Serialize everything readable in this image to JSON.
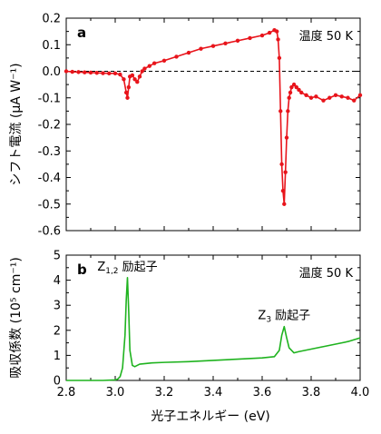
{
  "chart_data": [
    {
      "panel_label": "a",
      "type": "line",
      "annotation": "温度 50 K",
      "ylabel": "シフト電流 (μA W⁻¹)",
      "xlim": [
        2.8,
        4.0
      ],
      "ylim": [
        -0.6,
        0.2
      ],
      "yticks": [
        -0.6,
        -0.5,
        -0.4,
        -0.3,
        -0.2,
        -0.1,
        0.0,
        0.1,
        0.2
      ],
      "ytick_labels": [
        "-0.6",
        "-0.5",
        "-0.4",
        "-0.3",
        "-0.2",
        "-0.1",
        "0.0",
        "0.1",
        "0.2"
      ],
      "zero_line": "dashed",
      "color": "#e8141b",
      "markers": true,
      "series": [
        {
          "x": [
            2.8,
            2.825,
            2.85,
            2.875,
            2.9,
            2.925,
            2.95,
            2.975,
            3.0,
            3.02,
            3.035,
            3.045,
            3.05,
            3.055,
            3.06,
            3.07,
            3.08,
            3.09,
            3.1,
            3.11,
            3.12,
            3.14,
            3.16,
            3.2,
            3.25,
            3.3,
            3.35,
            3.4,
            3.45,
            3.5,
            3.55,
            3.6,
            3.63,
            3.65,
            3.66,
            3.665,
            3.67,
            3.675,
            3.68,
            3.685,
            3.69,
            3.695,
            3.7,
            3.705,
            3.71,
            3.715,
            3.72,
            3.73,
            3.74,
            3.75,
            3.76,
            3.78,
            3.8,
            3.82,
            3.85,
            3.875,
            3.9,
            3.925,
            3.95,
            3.975,
            4.0
          ],
          "y": [
            0.0,
            -0.002,
            -0.003,
            -0.004,
            -0.005,
            -0.006,
            -0.007,
            -0.008,
            -0.008,
            -0.012,
            -0.03,
            -0.08,
            -0.1,
            -0.06,
            -0.02,
            -0.015,
            -0.03,
            -0.04,
            -0.02,
            0.0,
            0.01,
            0.02,
            0.03,
            0.04,
            0.055,
            0.07,
            0.085,
            0.095,
            0.105,
            0.115,
            0.125,
            0.135,
            0.145,
            0.155,
            0.15,
            0.12,
            0.05,
            -0.15,
            -0.35,
            -0.45,
            -0.5,
            -0.38,
            -0.25,
            -0.15,
            -0.1,
            -0.08,
            -0.06,
            -0.05,
            -0.06,
            -0.07,
            -0.08,
            -0.09,
            -0.1,
            -0.095,
            -0.11,
            -0.1,
            -0.09,
            -0.095,
            -0.1,
            -0.11,
            -0.09
          ]
        }
      ]
    },
    {
      "panel_label": "b",
      "type": "line",
      "annotation": "温度 50 K",
      "ylabel": "吸収係数 (10⁵ cm⁻¹)",
      "xlabel": "光子エネルギー (eV)",
      "xlim": [
        2.8,
        4.0
      ],
      "ylim": [
        0,
        5
      ],
      "xticks": [
        2.8,
        3.0,
        3.2,
        3.4,
        3.6,
        3.8,
        4.0
      ],
      "xtick_labels": [
        "2.8",
        "3.0",
        "3.2",
        "3.4",
        "3.6",
        "3.8",
        "4.0"
      ],
      "yticks": [
        0,
        1,
        2,
        3,
        4,
        5
      ],
      "ytick_labels": [
        "0",
        "1",
        "2",
        "3",
        "4",
        "5"
      ],
      "color": "#1fb31f",
      "labels": [
        {
          "main": "Z",
          "sub": "1,2",
          "text": " 励起子",
          "x": 3.05,
          "y": 4.1
        },
        {
          "main": "Z",
          "sub": "3",
          "text": " 励起子",
          "x": 3.69,
          "y": 2.15
        }
      ],
      "series": [
        {
          "x": [
            2.8,
            2.9,
            2.95,
            3.0,
            3.01,
            3.02,
            3.03,
            3.04,
            3.045,
            3.05,
            3.055,
            3.06,
            3.07,
            3.08,
            3.1,
            3.15,
            3.2,
            3.3,
            3.4,
            3.5,
            3.6,
            3.65,
            3.67,
            3.68,
            3.69,
            3.7,
            3.71,
            3.73,
            3.75,
            3.8,
            3.85,
            3.9,
            3.95,
            4.0
          ],
          "y": [
            0.0,
            0.0,
            0.0,
            0.02,
            0.05,
            0.15,
            0.5,
            1.8,
            3.2,
            4.1,
            2.8,
            1.2,
            0.6,
            0.55,
            0.65,
            0.7,
            0.72,
            0.75,
            0.8,
            0.85,
            0.9,
            0.95,
            1.2,
            1.8,
            2.15,
            1.7,
            1.3,
            1.1,
            1.15,
            1.25,
            1.35,
            1.45,
            1.55,
            1.7
          ]
        }
      ]
    }
  ]
}
